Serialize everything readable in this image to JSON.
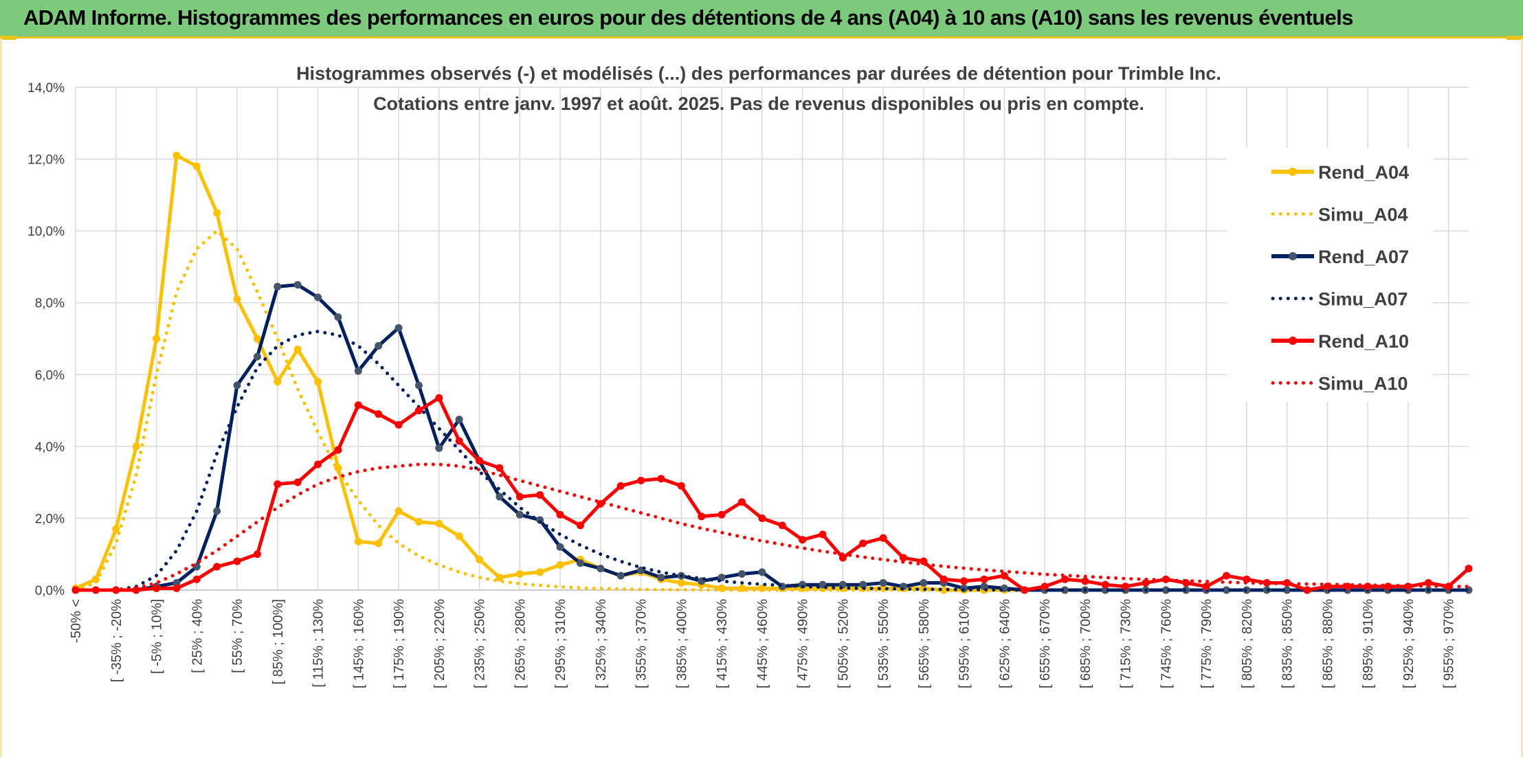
{
  "banner": {
    "title": "ADAM Informe. Histogrammes des performances en euros pour des détentions de 4 ans (A04) à 10 ans (A10) sans les revenus éventuels"
  },
  "chart_data": {
    "type": "line",
    "title_line1": "Histogrammes observés (-) et modélisés (...) des performances par durées de détention pour Trimble Inc.",
    "title_line2": "Cotations entre janv. 1997 et août. 2025. Pas de revenus disponibles ou pris en compte.",
    "xlabel": "",
    "ylabel": "",
    "ylim": [
      0,
      14
    ],
    "yticks": [
      "0,0%",
      "2,0%",
      "4,0%",
      "6,0%",
      "8,0%",
      "10,0%",
      "12,0%",
      "14,0%"
    ],
    "grid": true,
    "legend_position": "right",
    "x_tick_labels": [
      "-50% <",
      "[ -35% ; -20%",
      "[ -5% ; 10%]",
      "[ 25% ; 40%",
      "[ 55% ; 70%",
      "[ 85% ; 100%]",
      "[ 115% ; 130%",
      "[ 145% ; 160%",
      "[ 175% ; 190%",
      "[ 205% ; 220%",
      "[ 235% ; 250%",
      "[ 265% ; 280%",
      "[ 295% ; 310%",
      "[ 325% ; 340%",
      "[ 355% ; 370%",
      "[ 385% ; 400%",
      "[ 415% ; 430%",
      "[ 445% ; 460%",
      "[ 475% ; 490%",
      "[ 505% ; 520%",
      "[ 535% ; 550%",
      "[ 565% ; 580%",
      "[ 595% ; 610%",
      "[ 625% ; 640%",
      "[ 655% ; 670%",
      "[ 685% ; 700%",
      "[ 715% ; 730%",
      "[ 745% ; 760%",
      "[ 775% ; 790%",
      "[ 805% ; 820%",
      "[ 835% ; 850%",
      "[ 865% ; 880%",
      "[ 895% ; 910%",
      "[ 925% ; 940%",
      "[ 955% ; 970%"
    ],
    "n_categories": 70,
    "series": [
      {
        "name": "Rend_A04",
        "style": "solid",
        "color": "#FFC000",
        "values": [
          0.05,
          0.3,
          1.7,
          4.0,
          7.0,
          12.1,
          11.8,
          10.5,
          8.1,
          7.0,
          5.8,
          6.7,
          5.8,
          3.4,
          1.35,
          1.3,
          2.2,
          1.9,
          1.85,
          1.5,
          0.85,
          0.35,
          0.45,
          0.5,
          0.7,
          0.85,
          0.6,
          0.4,
          0.5,
          0.3,
          0.2,
          0.15,
          0.05,
          0.05,
          0.05,
          0.05,
          0.05,
          0.05,
          0.05,
          0.05,
          0.05,
          0.05,
          0.05,
          0.0,
          0.0,
          0.0,
          0.0,
          0.0,
          0.0,
          0.0,
          0.0,
          0.0,
          0.0,
          0.0,
          0.0,
          0.0,
          0.0,
          0.0,
          0.0,
          0.0,
          0.0,
          0.0,
          0.0,
          0.0,
          0.0,
          0.0,
          0.0,
          0.0,
          0.0,
          0.0
        ]
      },
      {
        "name": "Simu_A04",
        "style": "dotted",
        "color": "#FFC000",
        "values": [
          0.0,
          0.2,
          1.3,
          3.2,
          6.0,
          8.3,
          9.5,
          10.0,
          9.5,
          8.3,
          7.0,
          5.6,
          4.4,
          3.3,
          2.5,
          1.8,
          1.3,
          0.95,
          0.7,
          0.5,
          0.35,
          0.25,
          0.18,
          0.13,
          0.09,
          0.06,
          0.04,
          0.03,
          0.02,
          0.015,
          0.01,
          0.005,
          0.0,
          0.0,
          0.0,
          0.0,
          0.0,
          0.0,
          0.0,
          0.0,
          0.0,
          0.0,
          0.0,
          0.0,
          0.0,
          0.0,
          0.0,
          0.0,
          0.0,
          0.0,
          0.0,
          0.0,
          0.0,
          0.0,
          0.0,
          0.0,
          0.0,
          0.0,
          0.0,
          0.0,
          0.0,
          0.0,
          0.0,
          0.0,
          0.0,
          0.0,
          0.0,
          0.0,
          0.0,
          0.0
        ]
      },
      {
        "name": "Rend_A07",
        "style": "solid",
        "color": "#002060",
        "values": [
          0.0,
          0.0,
          0.0,
          0.0,
          0.1,
          0.2,
          0.65,
          2.2,
          5.7,
          6.5,
          8.45,
          8.5,
          8.15,
          7.6,
          6.1,
          6.8,
          7.3,
          5.7,
          3.95,
          4.75,
          3.6,
          2.6,
          2.1,
          1.95,
          1.2,
          0.75,
          0.6,
          0.4,
          0.55,
          0.35,
          0.4,
          0.25,
          0.35,
          0.45,
          0.5,
          0.1,
          0.15,
          0.15,
          0.15,
          0.15,
          0.2,
          0.1,
          0.2,
          0.2,
          0.05,
          0.1,
          0.05,
          0.0,
          0.0,
          0.0,
          0.0,
          0.0,
          0.0,
          0.0,
          0.0,
          0.0,
          0.0,
          0.0,
          0.0,
          0.0,
          0.0,
          0.0,
          0.0,
          0.0,
          0.0,
          0.0,
          0.0,
          0.0,
          0.0,
          0.0
        ]
      },
      {
        "name": "Simu_A07",
        "style": "dotted",
        "color": "#002060",
        "values": [
          0.0,
          0.0,
          0.0,
          0.1,
          0.4,
          1.1,
          2.2,
          3.8,
          5.1,
          6.2,
          6.8,
          7.1,
          7.2,
          7.1,
          6.8,
          6.3,
          5.7,
          5.1,
          4.5,
          3.9,
          3.3,
          2.8,
          2.3,
          1.9,
          1.55,
          1.25,
          1.0,
          0.8,
          0.63,
          0.5,
          0.4,
          0.32,
          0.25,
          0.2,
          0.16,
          0.13,
          0.1,
          0.08,
          0.06,
          0.05,
          0.04,
          0.03,
          0.02,
          0.02,
          0.01,
          0.01,
          0.0,
          0.0,
          0.0,
          0.0,
          0.0,
          0.0,
          0.0,
          0.0,
          0.0,
          0.0,
          0.0,
          0.0,
          0.0,
          0.0,
          0.0,
          0.0,
          0.0,
          0.0,
          0.0,
          0.0,
          0.0,
          0.0,
          0.0,
          0.0
        ]
      },
      {
        "name": "Rend_A10",
        "style": "solid",
        "color": "#FF0000",
        "values": [
          0.0,
          0.0,
          0.0,
          0.0,
          0.05,
          0.05,
          0.3,
          0.65,
          0.8,
          1.0,
          2.95,
          3.0,
          3.5,
          3.9,
          5.15,
          4.9,
          4.6,
          5.0,
          5.35,
          4.15,
          3.6,
          3.4,
          2.6,
          2.65,
          2.1,
          1.8,
          2.4,
          2.9,
          3.05,
          3.1,
          2.9,
          2.05,
          2.1,
          2.45,
          2.0,
          1.8,
          1.4,
          1.55,
          0.9,
          1.3,
          1.45,
          0.9,
          0.8,
          0.3,
          0.25,
          0.3,
          0.4,
          0.0,
          0.1,
          0.3,
          0.25,
          0.15,
          0.1,
          0.2,
          0.3,
          0.2,
          0.1,
          0.4,
          0.3,
          0.2,
          0.2,
          0.0,
          0.1,
          0.1,
          0.1,
          0.1,
          0.1,
          0.2,
          0.1,
          0.6
        ]
      },
      {
        "name": "Simu_A10",
        "style": "dotted",
        "color": "#FF0000",
        "values": [
          0.0,
          0.0,
          0.0,
          0.05,
          0.2,
          0.45,
          0.75,
          1.1,
          1.5,
          1.9,
          2.3,
          2.65,
          2.95,
          3.15,
          3.3,
          3.4,
          3.45,
          3.5,
          3.5,
          3.45,
          3.35,
          3.2,
          3.05,
          2.9,
          2.75,
          2.6,
          2.45,
          2.3,
          2.15,
          2.0,
          1.85,
          1.72,
          1.6,
          1.48,
          1.37,
          1.27,
          1.17,
          1.08,
          1.0,
          0.92,
          0.85,
          0.78,
          0.72,
          0.66,
          0.61,
          0.56,
          0.52,
          0.48,
          0.44,
          0.41,
          0.38,
          0.35,
          0.32,
          0.3,
          0.28,
          0.26,
          0.24,
          0.22,
          0.2,
          0.19,
          0.18,
          0.17,
          0.16,
          0.15,
          0.14,
          0.13,
          0.12,
          0.11,
          0.1,
          0.1
        ]
      }
    ]
  }
}
